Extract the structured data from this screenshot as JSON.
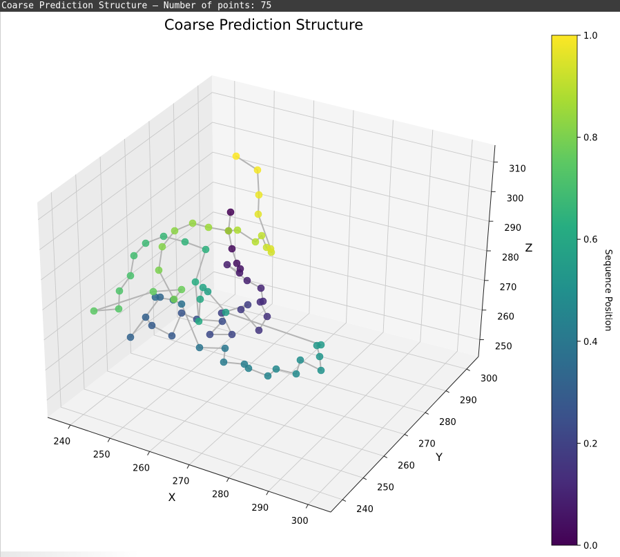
{
  "window": {
    "title": "Coarse Prediction Structure — Number of points: 75"
  },
  "chart_data": {
    "type": "scatter3d",
    "title": "Coarse Prediction Structure",
    "xlabel": "X",
    "ylabel": "Y",
    "zlabel": "Z",
    "x_ticks": [
      "240",
      "250",
      "260",
      "270",
      "280",
      "290",
      "300"
    ],
    "y_ticks": [
      "240",
      "250",
      "260",
      "270",
      "280",
      "290",
      "300"
    ],
    "z_ticks": [
      "250",
      "260",
      "270",
      "280",
      "290",
      "300",
      "310"
    ],
    "colorbar": {
      "label": "Sequence Position",
      "colormap": "viridis",
      "range": [
        0.0,
        1.0
      ],
      "ticks": [
        "0.0",
        "0.2",
        "0.4",
        "0.6",
        "0.8",
        "1.0"
      ]
    },
    "line_color": "#b4b4b4",
    "grid": true,
    "point_count": 75
  }
}
